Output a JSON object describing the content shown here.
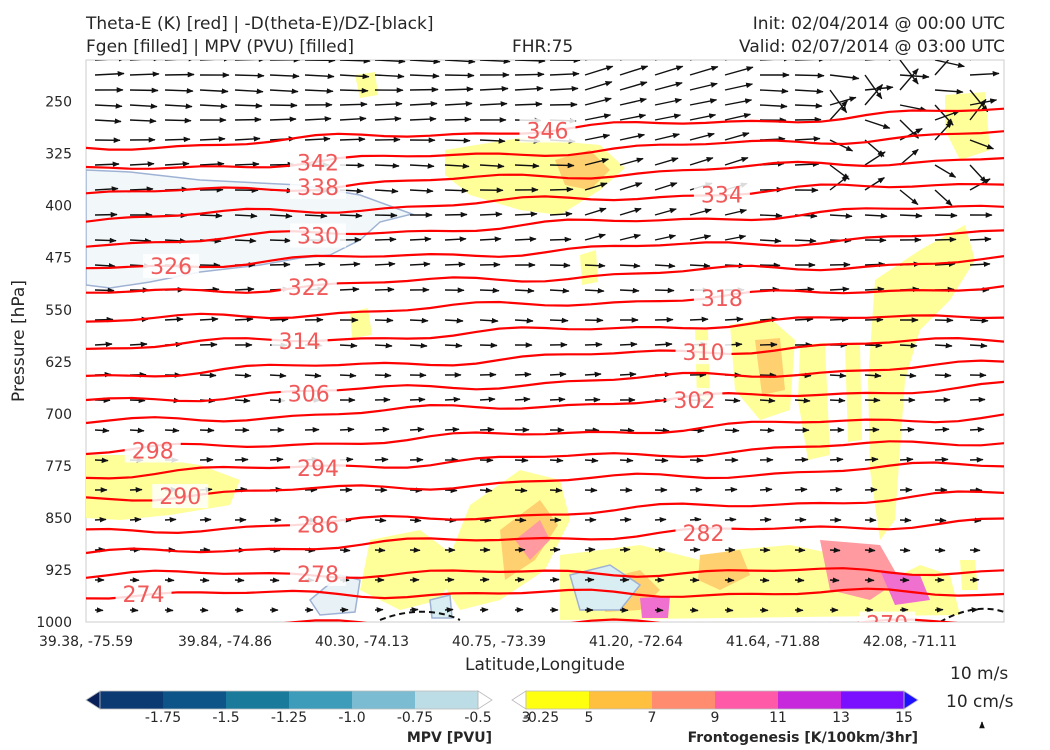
{
  "header": {
    "line1_left": "Theta-E (K) [red] | -D(theta-E)/DZ-[black]",
    "line2_left": "Fgen [filled] | MPV (PVU) [filled]",
    "fhr": "FHR:75",
    "init": "Init: 02/04/2014 @ 00:00 UTC",
    "valid": "Valid: 02/07/2014 @ 03:00 UTC"
  },
  "reference_vectors": {
    "horizontal": "10 m/s",
    "vertical": "10 cm/s"
  },
  "colors": {
    "theta_e_contour": "#ff0000",
    "theta_e_label": "#f05a5a",
    "vector": "#111111",
    "mpv_outline": "#9fb2d4",
    "mpv_fill": "#f2f8fa"
  },
  "chart_data": {
    "type": "cross-section",
    "xlabel": "Latitude,Longitude",
    "ylabel": "Pressure [hPa]",
    "y_scale": "pressure (inverted)",
    "ylim": [
      1000,
      190
    ],
    "x_ticks": [
      "39.38, -75.59",
      "39.84, -74.86",
      "40.30, -74.13",
      "40.75, -73.39",
      "41.20, -72.64",
      "41.64, -71.88",
      "42.08, -71.11"
    ],
    "y_ticks": [
      250,
      325,
      400,
      475,
      550,
      625,
      700,
      775,
      850,
      925,
      1000
    ],
    "theta_e_contours": [
      {
        "value": 270,
        "label": "270",
        "label_x": 0.84,
        "p_left": 1004,
        "p_right": 1002
      },
      {
        "value": 274,
        "label": "274",
        "label_x": 0.03,
        "p_left": 960,
        "p_right": 958
      },
      {
        "value": 278,
        "label": "278",
        "label_x": 0.22,
        "p_left": 932,
        "p_right": 926
      },
      {
        "value": 282,
        "label": "282",
        "label_x": 0.64,
        "p_left": 903,
        "p_right": 854
      },
      {
        "value": 286,
        "label": "286",
        "label_x": 0.22,
        "p_left": 872,
        "p_right": 815
      },
      {
        "value": 290,
        "label": "290",
        "label_x": 0.07,
        "p_left": 822,
        "p_right": 772
      },
      {
        "value": 294,
        "label": "294",
        "label_x": 0.22,
        "p_left": 789,
        "p_right": 738
      },
      {
        "value": 298,
        "label": "298",
        "label_x": 0.04,
        "p_left": 755,
        "p_right": 702
      },
      {
        "value": 302,
        "label": "302",
        "label_x": 0.63,
        "p_left": 714,
        "p_right": 660
      },
      {
        "value": 306,
        "label": "306",
        "label_x": 0.21,
        "p_left": 682,
        "p_right": 628
      },
      {
        "value": 310,
        "label": "310",
        "label_x": 0.64,
        "p_left": 645,
        "p_right": 592
      },
      {
        "value": 314,
        "label": "314",
        "label_x": 0.2,
        "p_left": 605,
        "p_right": 555
      },
      {
        "value": 318,
        "label": "318",
        "label_x": 0.66,
        "p_left": 568,
        "p_right": 515
      },
      {
        "value": 322,
        "label": "322",
        "label_x": 0.21,
        "p_left": 528,
        "p_right": 478
      },
      {
        "value": 326,
        "label": "326",
        "label_x": 0.06,
        "p_left": 490,
        "p_right": 440
      },
      {
        "value": 330,
        "label": "330",
        "label_x": 0.22,
        "p_left": 455,
        "p_right": 400
      },
      {
        "value": 334,
        "label": "334",
        "label_x": 0.66,
        "p_left": 420,
        "p_right": 365
      },
      {
        "value": 338,
        "label": "338",
        "label_x": 0.22,
        "p_left": 385,
        "p_right": 330
      },
      {
        "value": 342,
        "label": "342",
        "label_x": 0.22,
        "p_left": 350,
        "p_right": 295
      },
      {
        "value": 346,
        "label": "346",
        "label_x": 0.47,
        "p_left": 318,
        "p_right": 262
      }
    ],
    "mpv_colorbar": {
      "title": "MPV [PVU]",
      "ticks": [
        "-1.75",
        "-1.5",
        "-1.25",
        "-1.0",
        "-0.75",
        "-0.5",
        "-0.25"
      ],
      "colors": [
        "#08205a",
        "#0b3a73",
        "#0e5488",
        "#1a7a9c",
        "#3d9cba",
        "#7bbcd2",
        "#bcdde6",
        "#ffffff"
      ]
    },
    "fgen_colorbar": {
      "title": "Frontogenesis [K/100km/3hr]",
      "ticks": [
        "3",
        "5",
        "7",
        "9",
        "11",
        "13",
        "15"
      ],
      "colors": [
        "#ffffff",
        "#ffff10",
        "#ffc040",
        "#ff8c6e",
        "#ff5aa8",
        "#c828dc",
        "#7a10ff",
        "#1f10ff"
      ]
    }
  }
}
